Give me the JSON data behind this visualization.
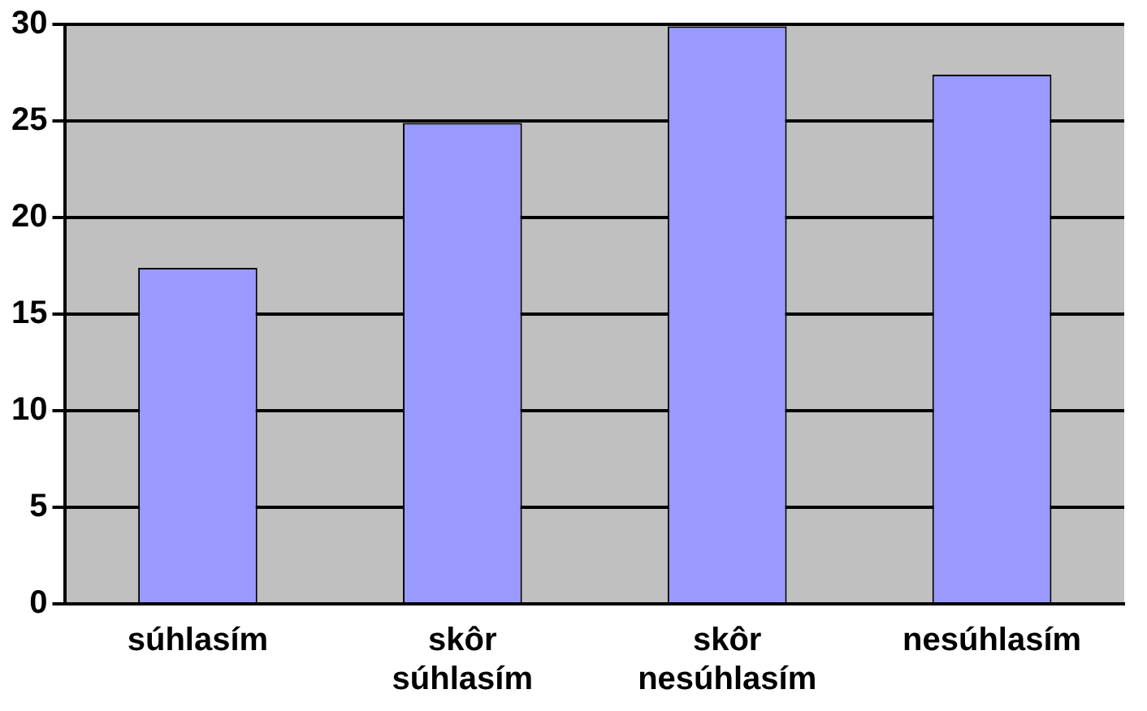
{
  "chart_data": {
    "type": "bar",
    "categories": [
      "súhlasím",
      "skôr súhlasím",
      "skôr nesúhlasím",
      "nesúhlasím"
    ],
    "values": [
      17.4,
      24.9,
      29.9,
      27.4
    ],
    "color": "#9999ff",
    "ylim": [
      0,
      30
    ],
    "yticks": [
      0,
      5,
      10,
      15,
      20,
      25,
      30
    ],
    "grid": "y",
    "legend": false
  }
}
